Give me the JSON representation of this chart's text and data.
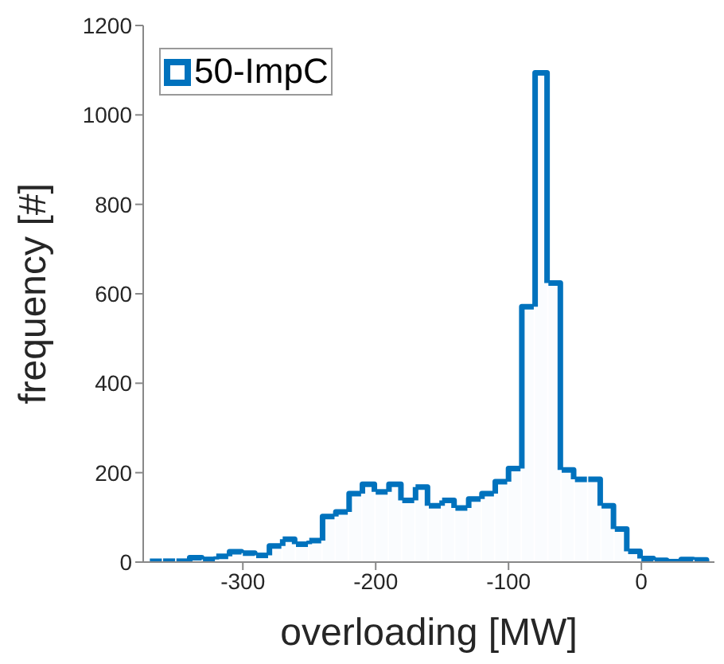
{
  "chart_data": {
    "type": "histogram",
    "xlabel": "overloading [MW]",
    "ylabel": "frequency [#]",
    "bins": [
      -370,
      -360,
      -350,
      -340,
      -330,
      -320,
      -310,
      -300,
      -290,
      -280,
      -270,
      -260,
      -250,
      -240,
      -230,
      -220,
      -210,
      -200,
      -190,
      -180,
      -170,
      -160,
      -150,
      -140,
      -130,
      -120,
      -110,
      -100,
      -90,
      -80,
      -70,
      -60,
      -50,
      -40,
      -30,
      -20,
      -10,
      0,
      10,
      20,
      30,
      40,
      50
    ],
    "series": [
      {
        "name": "50-ImpC",
        "color": "#0072bd",
        "values": [
          2,
          2,
          2,
          10,
          6,
          13,
          23,
          20,
          15,
          36,
          51,
          40,
          48,
          102,
          112,
          153,
          174,
          157,
          174,
          138,
          168,
          126,
          138,
          121,
          141,
          153,
          180,
          209,
          571,
          1094,
          624,
          206,
          185,
          185,
          126,
          74,
          24,
          8,
          4,
          1,
          6,
          5
        ]
      }
    ],
    "xlim": [
      -375,
      55
    ],
    "xticks": [
      -300,
      -200,
      -100,
      0
    ],
    "ylim": [
      0,
      1200
    ],
    "yticks": [
      0,
      200,
      400,
      600,
      800,
      1000,
      1200
    ],
    "grid": false,
    "legend": "top left"
  }
}
